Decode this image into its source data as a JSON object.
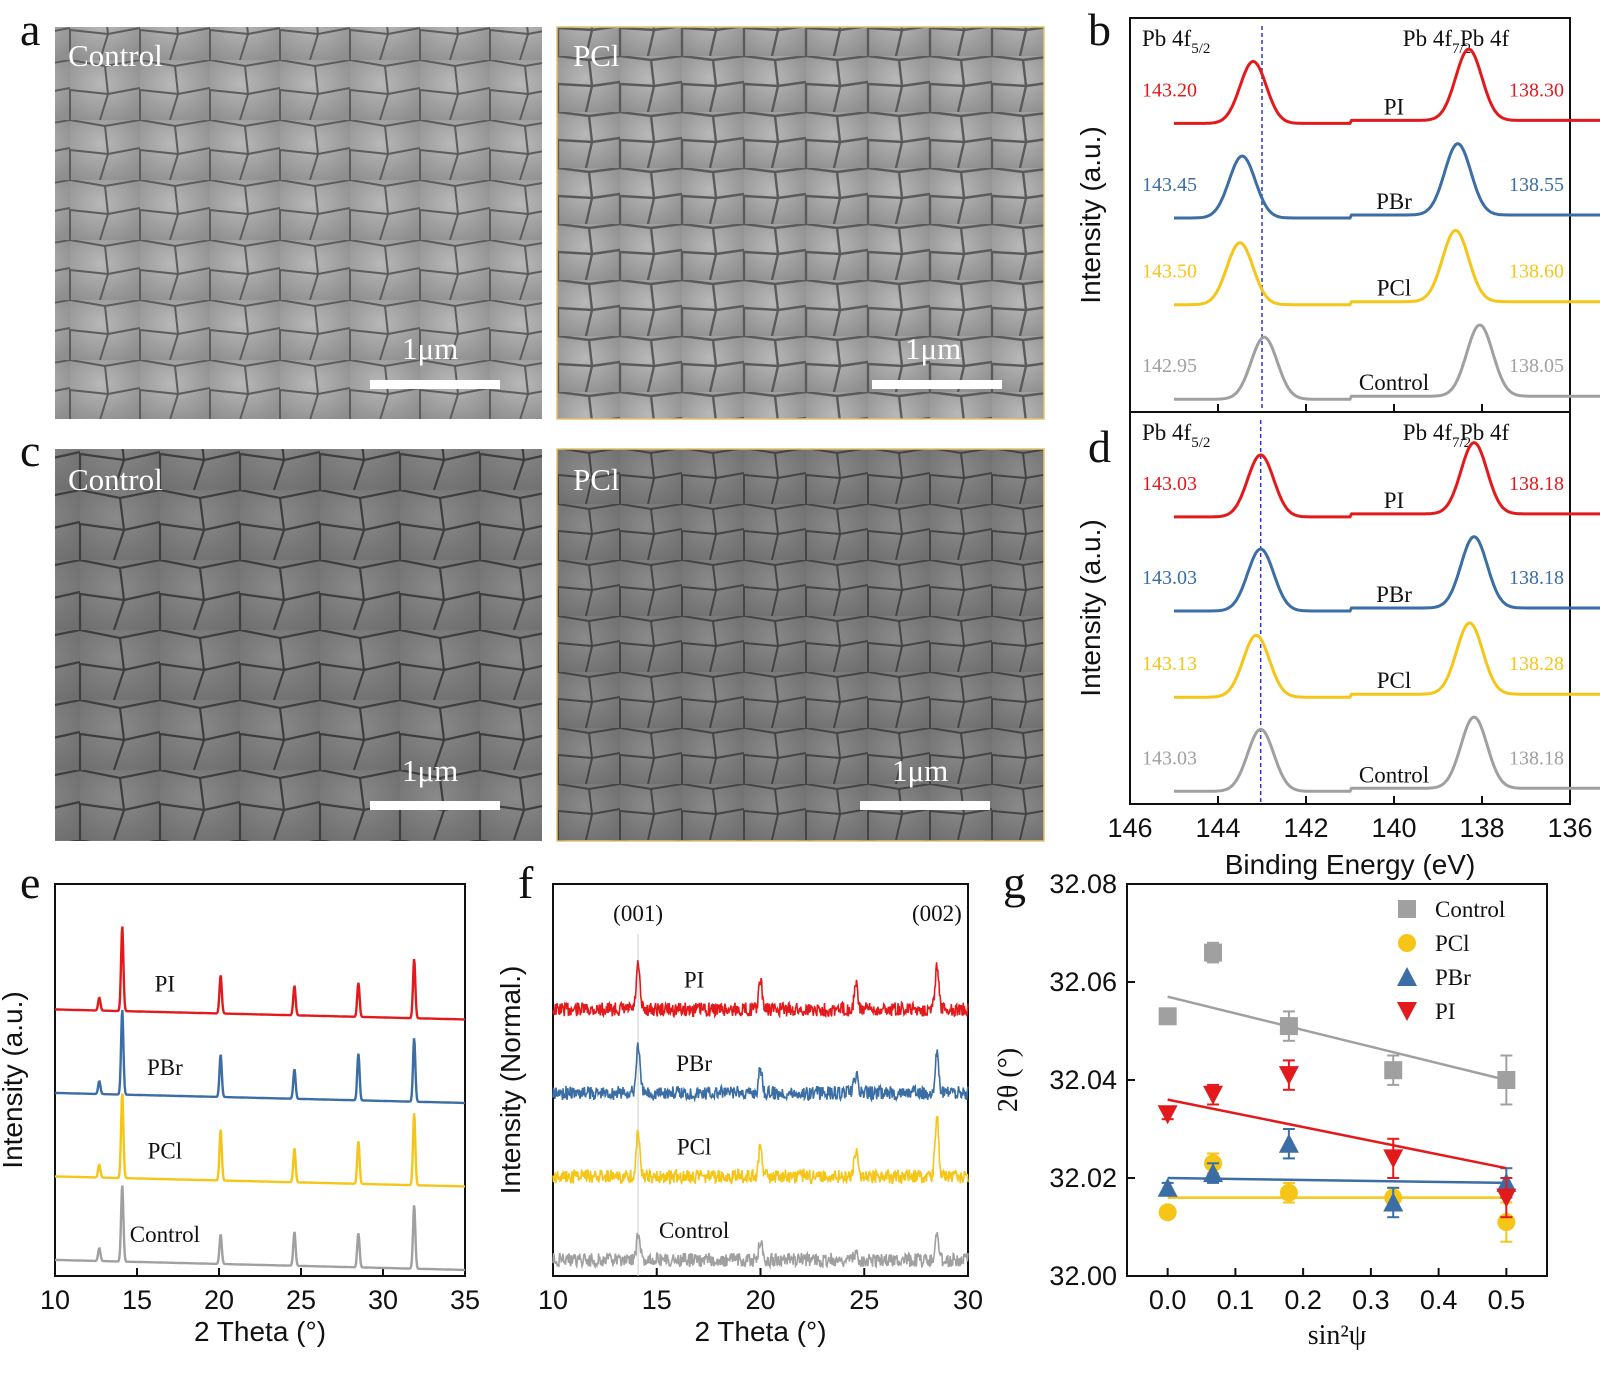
{
  "colors": {
    "PI": "#e31a1c",
    "PBr": "#3a6ea5",
    "PCl": "#f5c518",
    "Control": "#a0a0a0",
    "grid_line": "#2b35d6"
  },
  "panel_a": {
    "label": "a",
    "images": [
      {
        "label": "Control",
        "scale": "1μm"
      },
      {
        "label": "PCl",
        "scale": "1μm"
      }
    ]
  },
  "panel_c": {
    "label": "c",
    "images": [
      {
        "label": "Control",
        "scale": "1μm"
      },
      {
        "label": "PCl",
        "scale": "1μm"
      }
    ]
  },
  "chart_data": [
    {
      "panel": "b",
      "type": "line",
      "ylabel": "Intensity (a.u.)",
      "xlim": [
        146,
        136
      ],
      "x_reversed": true,
      "annotations": {
        "left": "Pb 4f",
        "left_sub": "5/2",
        "mid": "Pb 4f",
        "mid_sub": "7/2",
        "right": "Pb 4f"
      },
      "reference_line_x": 143.0,
      "series": [
        {
          "name": "PI",
          "peak1": 143.2,
          "peak2": 138.3,
          "label1": "143.20",
          "label2": "138.30",
          "color": "#e31a1c"
        },
        {
          "name": "PBr",
          "peak1": 143.45,
          "peak2": 138.55,
          "label1": "143.45",
          "label2": "138.55",
          "color": "#3a6ea5"
        },
        {
          "name": "PCl",
          "peak1": 143.5,
          "peak2": 138.6,
          "label1": "143.50",
          "label2": "138.60",
          "color": "#f5c518"
        },
        {
          "name": "Control",
          "peak1": 142.95,
          "peak2": 138.05,
          "label1": "142.95",
          "label2": "138.05",
          "color": "#a0a0a0"
        }
      ]
    },
    {
      "panel": "d",
      "type": "line",
      "ylabel": "Intensity (a.u.)",
      "xlabel": "Binding Energy (eV)",
      "xlim": [
        146,
        136
      ],
      "x_reversed": true,
      "xticks": [
        "146",
        "144",
        "142",
        "140",
        "138",
        "136"
      ],
      "annotations": {
        "left": "Pb 4f",
        "left_sub": "5/2",
        "mid": "Pb 4f",
        "mid_sub": "7/2",
        "right": "Pb 4f"
      },
      "reference_line_x": 143.03,
      "series": [
        {
          "name": "PI",
          "peak1": 143.03,
          "peak2": 138.18,
          "label1": "143.03",
          "label2": "138.18",
          "color": "#e31a1c"
        },
        {
          "name": "PBr",
          "peak1": 143.03,
          "peak2": 138.18,
          "label1": "143.03",
          "label2": "138.18",
          "color": "#3a6ea5"
        },
        {
          "name": "PCl",
          "peak1": 143.13,
          "peak2": 138.28,
          "label1": "143.13",
          "label2": "138.28",
          "color": "#f5c518"
        },
        {
          "name": "Control",
          "peak1": 143.03,
          "peak2": 138.18,
          "label1": "143.03",
          "label2": "138.18",
          "color": "#a0a0a0"
        }
      ]
    },
    {
      "panel": "e",
      "type": "line",
      "xlabel": "2 Theta (°)",
      "ylabel": "Intensity (a.u.)",
      "xlim": [
        10,
        35
      ],
      "xticks": [
        "10",
        "15",
        "20",
        "25",
        "30",
        "35"
      ],
      "peaks": [
        12.7,
        14.1,
        20.1,
        24.6,
        28.5,
        31.9
      ],
      "series": [
        {
          "name": "PI",
          "color": "#e31a1c",
          "heights": [
            0.15,
            1.0,
            0.45,
            0.35,
            0.4,
            0.7
          ]
        },
        {
          "name": "PBr",
          "color": "#3a6ea5",
          "heights": [
            0.15,
            1.0,
            0.5,
            0.35,
            0.55,
            0.75
          ]
        },
        {
          "name": "PCl",
          "color": "#f5c518",
          "heights": [
            0.15,
            1.0,
            0.6,
            0.4,
            0.5,
            0.85
          ]
        },
        {
          "name": "Control",
          "color": "#a0a0a0",
          "heights": [
            0.15,
            0.9,
            0.35,
            0.4,
            0.4,
            0.75
          ]
        }
      ]
    },
    {
      "panel": "f",
      "type": "line",
      "xlabel": "2 Theta (°)",
      "ylabel": "Intensity (Normal.)",
      "xlim": [
        10,
        30
      ],
      "xticks": [
        "10",
        "15",
        "20",
        "25",
        "30"
      ],
      "peak_labels": [
        {
          "x": 14.1,
          "text": "(001)"
        },
        {
          "x": 28.5,
          "text": "(002)"
        }
      ],
      "peaks": [
        14.1,
        20.0,
        24.6,
        28.5
      ],
      "series": [
        {
          "name": "PI",
          "color": "#e31a1c",
          "heights": [
            0.7,
            0.45,
            0.4,
            0.7
          ]
        },
        {
          "name": "PBr",
          "color": "#3a6ea5",
          "heights": [
            0.8,
            0.4,
            0.3,
            0.6
          ]
        },
        {
          "name": "PCl",
          "color": "#f5c518",
          "heights": [
            0.75,
            0.5,
            0.45,
            1.0
          ]
        },
        {
          "name": "Control",
          "color": "#a0a0a0",
          "heights": [
            0.4,
            0.3,
            0.1,
            0.4
          ]
        }
      ]
    },
    {
      "panel": "g",
      "type": "scatter",
      "xlabel": "sin²ψ",
      "ylabel": "2θ (°)",
      "xlim": [
        -0.06,
        0.56
      ],
      "ylim": [
        32.0,
        32.08
      ],
      "xticks": [
        "0.0",
        "0.1",
        "0.2",
        "0.3",
        "0.4",
        "0.5"
      ],
      "yticks": [
        "32.00",
        "32.02",
        "32.04",
        "32.06",
        "32.08"
      ],
      "legend_position": "top-right",
      "series": [
        {
          "name": "Control",
          "marker": "square",
          "color": "#a0a0a0",
          "x": [
            0.0,
            0.067,
            0.179,
            0.333,
            0.5
          ],
          "y": [
            32.053,
            32.066,
            32.051,
            32.042,
            32.04
          ],
          "err": [
            0.001,
            0.002,
            0.003,
            0.003,
            0.005
          ],
          "fit": [
            32.057,
            32.04
          ]
        },
        {
          "name": "PCl",
          "marker": "circle",
          "color": "#f5c518",
          "x": [
            0.0,
            0.067,
            0.179,
            0.333,
            0.5
          ],
          "y": [
            32.013,
            32.023,
            32.017,
            32.016,
            32.011
          ],
          "err": [
            0.001,
            0.002,
            0.002,
            0.002,
            0.004
          ],
          "fit": [
            32.016,
            32.016
          ]
        },
        {
          "name": "PBr",
          "marker": "triangle-up",
          "color": "#3a6ea5",
          "x": [
            0.0,
            0.067,
            0.179,
            0.333,
            0.5
          ],
          "y": [
            32.018,
            32.021,
            32.027,
            32.015,
            32.019
          ],
          "err": [
            0.001,
            0.002,
            0.003,
            0.003,
            0.003
          ],
          "fit": [
            32.02,
            32.019
          ]
        },
        {
          "name": "PI",
          "marker": "triangle-down",
          "color": "#e31a1c",
          "x": [
            0.0,
            0.067,
            0.179,
            0.333,
            0.5
          ],
          "y": [
            32.033,
            32.037,
            32.041,
            32.024,
            32.016
          ],
          "err": [
            0.001,
            0.002,
            0.003,
            0.004,
            0.004
          ],
          "fit": [
            32.036,
            32.022
          ]
        }
      ]
    }
  ]
}
